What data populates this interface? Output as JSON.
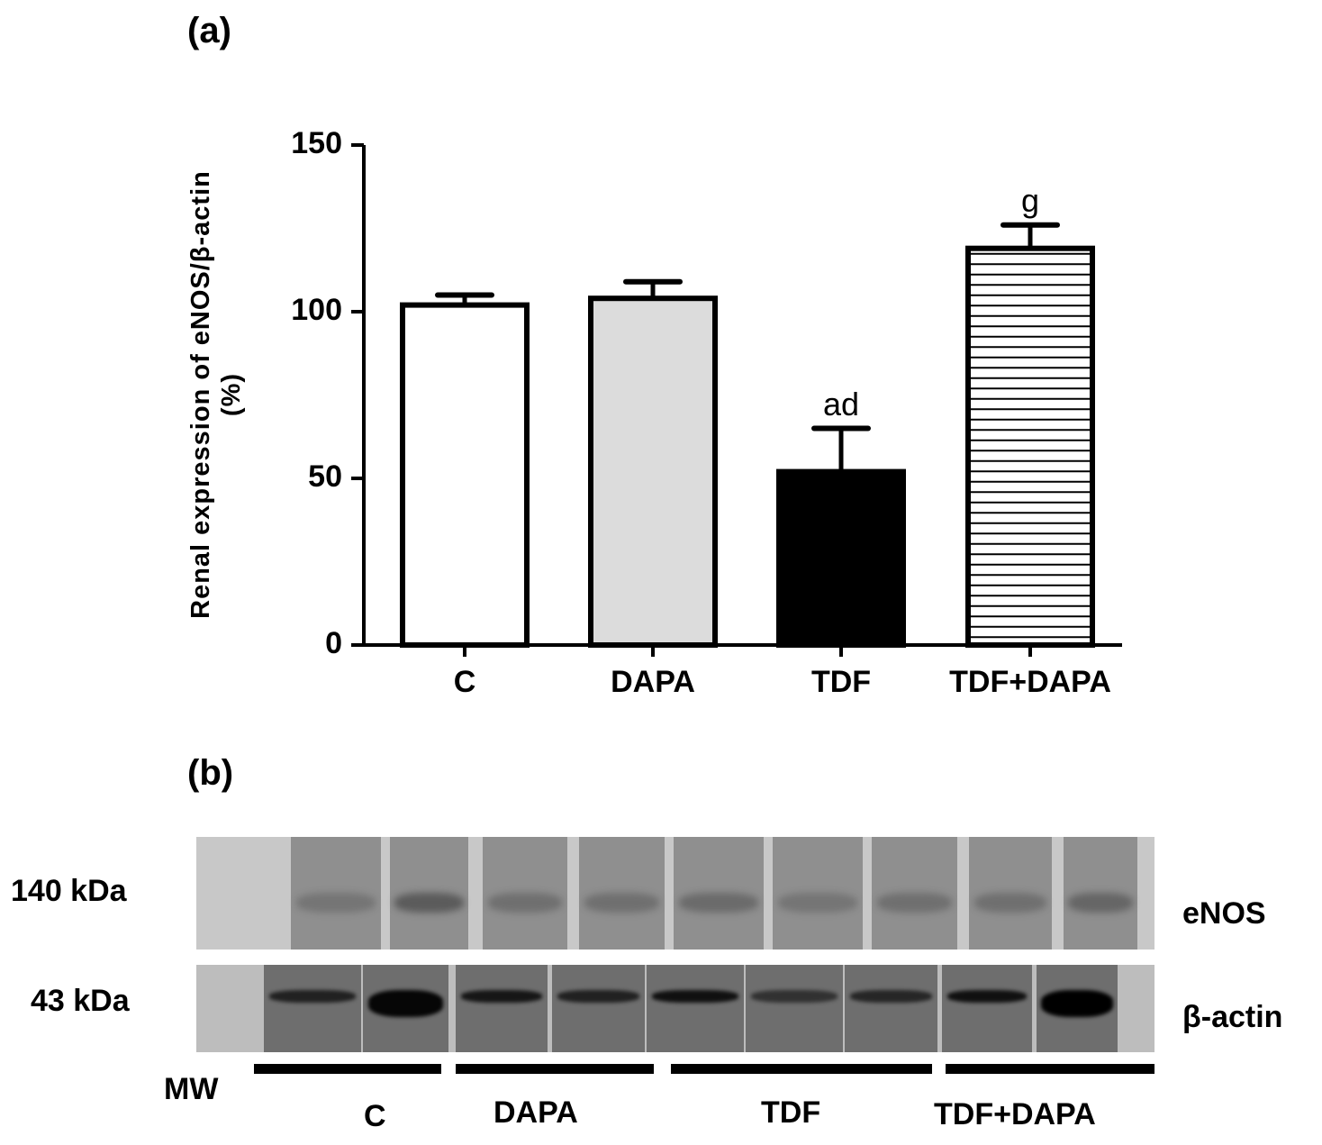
{
  "panel_a": {
    "label": "(a)"
  },
  "panel_b": {
    "label": "(b)"
  },
  "chart_data": {
    "type": "bar",
    "title": "",
    "xlabel": "",
    "ylabel": "Renal expression of eNOS/β-actin (%)",
    "ylabel_line1": "Renal expression of eNOS/β-actin",
    "ylabel_line2": "(%)",
    "ylim": [
      0,
      150
    ],
    "yticks": [
      "0",
      "50",
      "100",
      "150"
    ],
    "grid": false,
    "categories": [
      "C",
      "DAPA",
      "TDF",
      "TDF+DAPA"
    ],
    "values": [
      102,
      104,
      52,
      119
    ],
    "error_upper": [
      105,
      109,
      65,
      126
    ],
    "annotations": [
      "",
      "",
      "ad",
      "g"
    ],
    "bar_fills": [
      "#ffffff",
      "#dcdcdc",
      "#000000",
      "hatched-horizontal"
    ]
  },
  "blot": {
    "rows": [
      {
        "mw": "140 kDa",
        "protein": "eNOS"
      },
      {
        "mw": "43 kDa",
        "protein": "β-actin"
      }
    ],
    "mw_lane_label": "MW",
    "groups": [
      "C",
      "DAPA",
      "TDF",
      "TDF+DAPA"
    ]
  }
}
